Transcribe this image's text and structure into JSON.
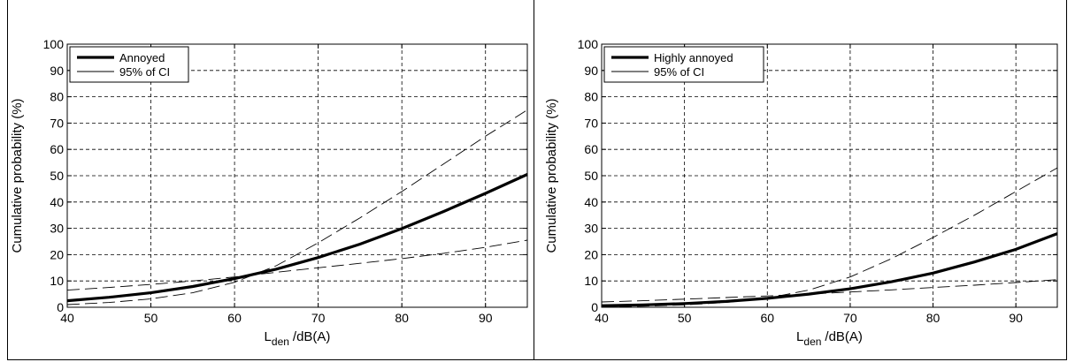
{
  "chart_data": [
    {
      "type": "line",
      "title": "",
      "xlabel": "L",
      "xlabel_sub": "den",
      "xlabel_unit": "/dB(A)",
      "ylabel": "Cumulative probability (%)",
      "xlim": [
        40,
        95
      ],
      "ylim": [
        0,
        100
      ],
      "xticks": [
        "40",
        "50",
        "60",
        "70",
        "80",
        "90"
      ],
      "yticks": [
        "0",
        "10",
        "20",
        "30",
        "40",
        "50",
        "60",
        "70",
        "80",
        "90",
        "100"
      ],
      "grid": true,
      "legend_position": "top-left",
      "legend": [
        {
          "label": "Annoyed",
          "style": "thick-solid"
        },
        {
          "label": "95% of CI",
          "style": "thin-solid"
        }
      ],
      "series": [
        {
          "role": "main",
          "x": [
            40,
            45,
            50,
            55,
            60,
            65,
            70,
            75,
            80,
            85,
            90,
            95
          ],
          "y": [
            2.5,
            3.8,
            5.5,
            7.9,
            10.9,
            14.5,
            18.9,
            24.0,
            29.9,
            36.4,
            43.3,
            50.5
          ]
        },
        {
          "role": "ci-upper",
          "x": [
            40,
            45,
            50,
            55,
            60,
            65,
            70,
            75,
            80,
            85,
            90,
            95
          ],
          "y": [
            1.0,
            1.8,
            3.2,
            5.5,
            9.5,
            15.8,
            24.5,
            34.0,
            44.0,
            54.5,
            65.0,
            75.0
          ]
        },
        {
          "role": "ci-lower",
          "x": [
            40,
            45,
            50,
            55,
            60,
            65,
            70,
            75,
            80,
            85,
            90,
            95
          ],
          "y": [
            6.5,
            7.5,
            8.7,
            10.0,
            11.5,
            13.3,
            15.0,
            16.7,
            18.5,
            20.5,
            22.8,
            25.5
          ]
        }
      ]
    },
    {
      "type": "line",
      "title": "",
      "xlabel": "L",
      "xlabel_sub": "den",
      "xlabel_unit": "/dB(A)",
      "ylabel": "Cumulative probability (%)",
      "xlim": [
        40,
        95
      ],
      "ylim": [
        0,
        100
      ],
      "xticks": [
        "40",
        "50",
        "60",
        "70",
        "80",
        "90"
      ],
      "yticks": [
        "0",
        "10",
        "20",
        "30",
        "40",
        "50",
        "60",
        "70",
        "80",
        "90",
        "100"
      ],
      "grid": true,
      "legend_position": "top-left",
      "legend": [
        {
          "label": "Highly annoyed",
          "style": "thick-solid"
        },
        {
          "label": "95% of CI",
          "style": "thin-solid"
        }
      ],
      "series": [
        {
          "role": "main",
          "x": [
            40,
            45,
            50,
            55,
            60,
            65,
            70,
            75,
            80,
            85,
            90,
            95
          ],
          "y": [
            0.6,
            0.9,
            1.4,
            2.2,
            3.4,
            5.0,
            7.0,
            9.7,
            13.0,
            17.2,
            22.0,
            28.0
          ]
        },
        {
          "role": "ci-upper",
          "x": [
            40,
            45,
            50,
            55,
            60,
            65,
            70,
            75,
            80,
            85,
            90,
            95
          ],
          "y": [
            0.2,
            0.4,
            0.9,
            1.8,
            3.5,
            6.5,
            11.5,
            18.5,
            26.5,
            35.0,
            44.0,
            53.0
          ]
        },
        {
          "role": "ci-lower",
          "x": [
            40,
            45,
            50,
            55,
            60,
            65,
            70,
            75,
            80,
            85,
            90,
            95
          ],
          "y": [
            2.0,
            2.5,
            3.1,
            3.7,
            4.3,
            5.0,
            5.8,
            6.6,
            7.5,
            8.4,
            9.4,
            10.5
          ]
        }
      ]
    }
  ]
}
